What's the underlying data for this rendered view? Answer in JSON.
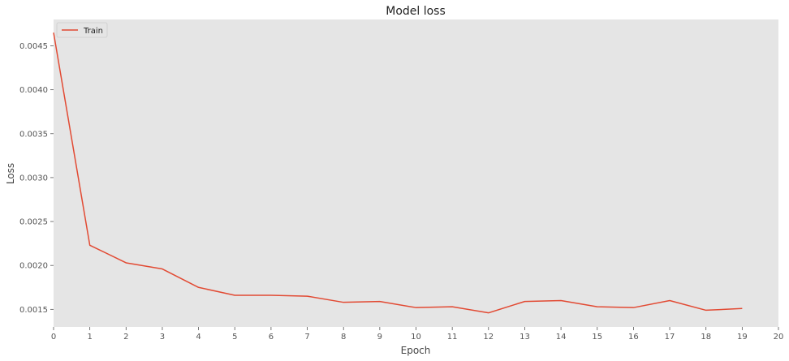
{
  "chart_data": {
    "type": "line",
    "title": "Model loss",
    "xlabel": "Epoch",
    "ylabel": "Loss",
    "xlim": [
      0,
      20
    ],
    "ylim": [
      0.0013,
      0.0048
    ],
    "x_ticks": [
      0,
      1,
      2,
      3,
      4,
      5,
      6,
      7,
      8,
      9,
      10,
      11,
      12,
      13,
      14,
      15,
      16,
      17,
      18,
      19,
      20
    ],
    "y_ticks": [
      0.0015,
      0.002,
      0.0025,
      0.003,
      0.0035,
      0.004,
      0.0045
    ],
    "y_tick_labels": [
      "0.0015",
      "0.0020",
      "0.0025",
      "0.0030",
      "0.0035",
      "0.0040",
      "0.0045"
    ],
    "grid": false,
    "legend_position": "top-left",
    "series": [
      {
        "name": "Train",
        "color": "#e24a33",
        "x": [
          0,
          1,
          2,
          3,
          4,
          5,
          6,
          7,
          8,
          9,
          10,
          11,
          12,
          13,
          14,
          15,
          16,
          17,
          18,
          19
        ],
        "y": [
          0.00465,
          0.00223,
          0.00203,
          0.00196,
          0.00175,
          0.00166,
          0.00166,
          0.00165,
          0.00158,
          0.00159,
          0.00152,
          0.00153,
          0.00146,
          0.00159,
          0.0016,
          0.00153,
          0.00152,
          0.0016,
          0.00149,
          0.00151
        ]
      }
    ]
  }
}
